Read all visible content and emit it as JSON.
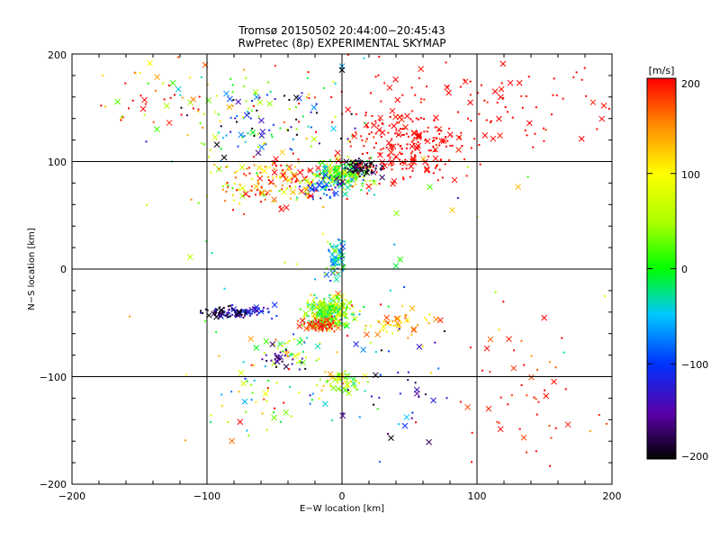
{
  "chart_data": {
    "type": "scatter",
    "title": "Tromsø 20150502 20:44:00−20:45:43",
    "subtitle": "RwPretec (8p) EXPERIMENTAL SKYMAP",
    "xlabel": "E−W location [km]",
    "ylabel": "N−S location [km]",
    "xlim": [
      -200,
      200
    ],
    "ylim": [
      -200,
      200
    ],
    "xticks": [
      "−200",
      "−100",
      "0",
      "100",
      "200"
    ],
    "yticks": [
      "−200",
      "−100",
      "0",
      "100",
      "200"
    ],
    "grid": true,
    "colorbar": {
      "label": "[m/s]",
      "range": [
        -200,
        200
      ],
      "ticks": [
        "−200",
        "−100",
        "0",
        "100",
        "200"
      ],
      "tick_values": [
        -200,
        -100,
        0,
        100,
        200
      ]
    },
    "clusters": [
      {
        "x": 0,
        "y": 88,
        "sx": 14,
        "sy": 10,
        "n": 220,
        "v": 20,
        "vs": 70
      },
      {
        "x": 15,
        "y": 95,
        "sx": 10,
        "sy": 6,
        "n": 70,
        "v": -190,
        "vs": 25
      },
      {
        "x": -50,
        "y": 80,
        "sx": 35,
        "sy": 18,
        "n": 170,
        "v": 140,
        "vs": 90
      },
      {
        "x": 50,
        "y": 115,
        "sx": 30,
        "sy": 22,
        "n": 200,
        "v": 200,
        "vs": 10
      },
      {
        "x": -50,
        "y": 140,
        "sx": 50,
        "sy": 30,
        "n": 130,
        "v": -40,
        "vs": 170
      },
      {
        "x": 90,
        "y": 150,
        "sx": 90,
        "sy": 30,
        "n": 130,
        "v": 200,
        "vs": 10
      },
      {
        "x": -140,
        "y": 160,
        "sx": 35,
        "sy": 25,
        "n": 50,
        "v": 150,
        "vs": 110
      },
      {
        "x": -15,
        "y": 75,
        "sx": 10,
        "sy": 8,
        "n": 40,
        "v": -110,
        "vs": 40
      },
      {
        "x": -5,
        "y": 10,
        "sx": 5,
        "sy": 15,
        "n": 60,
        "v": -40,
        "vs": 70
      },
      {
        "x": -10,
        "y": -40,
        "sx": 12,
        "sy": 10,
        "n": 280,
        "v": 40,
        "vs": 70
      },
      {
        "x": -15,
        "y": -52,
        "sx": 10,
        "sy": 4,
        "n": 70,
        "v": 180,
        "vs": 30
      },
      {
        "x": -75,
        "y": -40,
        "sx": 18,
        "sy": 4,
        "n": 80,
        "v": -120,
        "vs": 40
      },
      {
        "x": -90,
        "y": -40,
        "sx": 12,
        "sy": 4,
        "n": 40,
        "v": -190,
        "vs": 20
      },
      {
        "x": 40,
        "y": -50,
        "sx": 20,
        "sy": 10,
        "n": 50,
        "v": 130,
        "vs": 60
      },
      {
        "x": 0,
        "y": -105,
        "sx": 12,
        "sy": 8,
        "n": 60,
        "v": 60,
        "vs": 60
      },
      {
        "x": -40,
        "y": -75,
        "sx": 15,
        "sy": 10,
        "n": 45,
        "v": 40,
        "vs": 100
      },
      {
        "x": -45,
        "y": -85,
        "sx": 10,
        "sy": 8,
        "n": 25,
        "v": -170,
        "vs": 40
      },
      {
        "x": -60,
        "y": -120,
        "sx": 40,
        "sy": 30,
        "n": 50,
        "v": 40,
        "vs": 130
      },
      {
        "x": 40,
        "y": -110,
        "sx": 25,
        "sy": 40,
        "n": 40,
        "v": -150,
        "vs": 70
      },
      {
        "x": 130,
        "y": -120,
        "sx": 45,
        "sy": 50,
        "n": 55,
        "v": 190,
        "vs": 30
      },
      {
        "x": 0,
        "y": 0,
        "sx": 120,
        "sy": 110,
        "n": 60,
        "v": 40,
        "vs": 140
      }
    ]
  }
}
